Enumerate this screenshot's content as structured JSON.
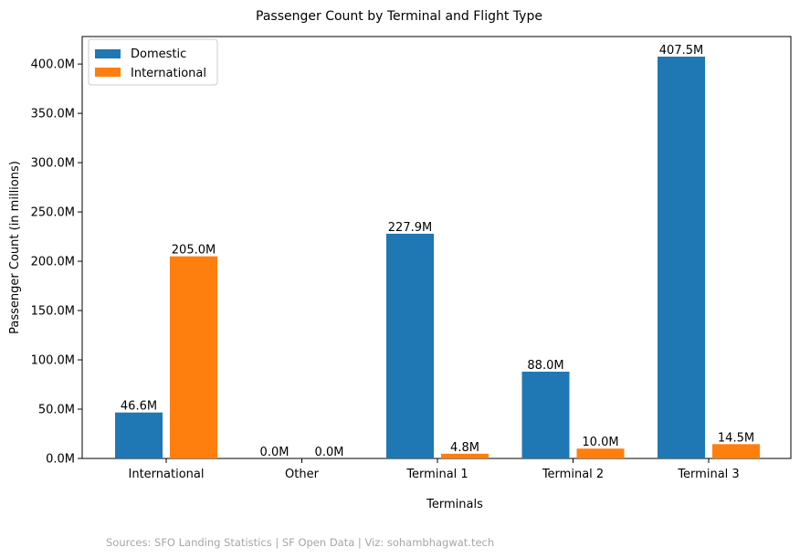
{
  "chart_data": {
    "type": "bar",
    "title": "Passenger Count by Terminal and Flight Type",
    "xlabel": "Terminals",
    "ylabel": "Passenger Count (in millions)",
    "categories": [
      "International",
      "Other",
      "Terminal 1",
      "Terminal 2",
      "Terminal 3"
    ],
    "series": [
      {
        "name": "Domestic",
        "color": "#1f77b4",
        "values": [
          46.6,
          0.0,
          227.9,
          88.0,
          407.5
        ],
        "labels": [
          "46.6M",
          "0.0M",
          "227.9M",
          "88.0M",
          "407.5M"
        ]
      },
      {
        "name": "International",
        "color": "#ff7f0e",
        "values": [
          205.0,
          0.0,
          4.8,
          10.0,
          14.5
        ],
        "labels": [
          "205.0M",
          "0.0M",
          "4.8M",
          "10.0M",
          "14.5M"
        ]
      }
    ],
    "yticks": [
      0,
      50,
      100,
      150,
      200,
      250,
      300,
      350,
      400
    ],
    "ytick_labels": [
      "0.0M",
      "50.0M",
      "100.0M",
      "150.0M",
      "200.0M",
      "250.0M",
      "300.0M",
      "350.0M",
      "400.0M"
    ],
    "ylim": [
      0,
      427.9
    ],
    "legend_position": "upper-left",
    "grid": false
  },
  "footer": {
    "source": "Sources: SFO Landing Statistics | SF Open Data | Viz: sohambhagwat.tech"
  }
}
